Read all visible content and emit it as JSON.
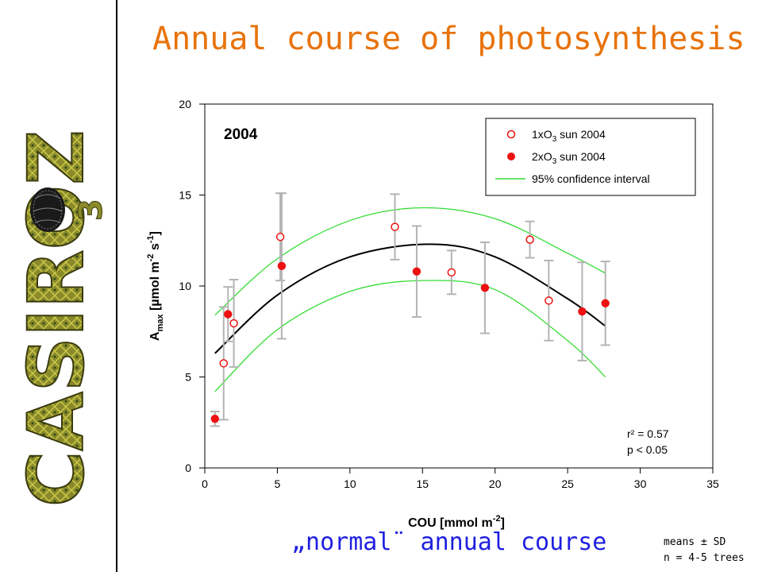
{
  "slide": {
    "title": "Annual course of photosynthesis",
    "caption": "„normal¨ annual course",
    "note_line1": "means ± SD",
    "note_line2": "n = 4-5 trees",
    "logo_text": "CASIROZ",
    "logo_subscript": "3"
  },
  "colors": {
    "title": "#e8730c",
    "caption": "#1f1fe0",
    "points": "#ee1111",
    "fit": "#000000",
    "ci": "#33dd33",
    "errorbar": "#b4b4b4"
  },
  "chart_data": {
    "type": "scatter",
    "panel_label": "2004",
    "xlabel": "COU [mmol m-2]",
    "ylabel": "Amax [µmol m-2 s-1]",
    "xlim": [
      0,
      35
    ],
    "ylim": [
      0,
      20
    ],
    "xticks": [
      0,
      5,
      10,
      15,
      20,
      25,
      30,
      35
    ],
    "yticks": [
      0,
      5,
      10,
      15,
      20
    ],
    "legend_position": "top-right",
    "series": [
      {
        "name": "1xO3 sun 2004",
        "marker": "open-circle",
        "points": [
          {
            "x": 1.3,
            "y": 5.75,
            "sd": 3.1
          },
          {
            "x": 2.0,
            "y": 7.95,
            "sd": 2.4
          },
          {
            "x": 5.2,
            "y": 12.7,
            "sd": 2.4
          },
          {
            "x": 13.1,
            "y": 13.25,
            "sd": 1.8
          },
          {
            "x": 17.0,
            "y": 10.75,
            "sd": 1.2
          },
          {
            "x": 22.4,
            "y": 12.55,
            "sd": 1.0
          },
          {
            "x": 23.7,
            "y": 9.2,
            "sd": 2.2
          }
        ]
      },
      {
        "name": "2xO3 sun 2004",
        "marker": "filled-circle",
        "points": [
          {
            "x": 0.7,
            "y": 2.7,
            "sd": 0.4
          },
          {
            "x": 1.6,
            "y": 8.45,
            "sd": 1.5
          },
          {
            "x": 5.3,
            "y": 11.1,
            "sd": 4.0
          },
          {
            "x": 14.6,
            "y": 10.8,
            "sd": 2.5
          },
          {
            "x": 19.3,
            "y": 9.9,
            "sd": 2.5
          },
          {
            "x": 26.0,
            "y": 8.6,
            "sd": 2.7
          },
          {
            "x": 27.6,
            "y": 9.05,
            "sd": 2.3
          }
        ]
      }
    ],
    "fit_curve": {
      "x": [
        0.7,
        5,
        10,
        15.5,
        20,
        25,
        27.6
      ],
      "y": [
        6.3,
        9.5,
        11.6,
        12.3,
        11.6,
        9.3,
        7.8
      ]
    },
    "ci_upper": {
      "name": "95% confidence interval",
      "x": [
        0.7,
        5,
        10,
        15,
        20,
        25,
        27.6
      ],
      "y": [
        8.4,
        11.5,
        13.6,
        14.3,
        13.7,
        11.8,
        10.7
      ]
    },
    "ci_lower": {
      "x": [
        0.7,
        5,
        10,
        15,
        20,
        25,
        27.6
      ],
      "y": [
        4.2,
        7.6,
        9.7,
        10.3,
        9.8,
        7.0,
        5.0
      ]
    },
    "stats": {
      "r2": "r² = 0.57",
      "p": "p < 0.05"
    }
  }
}
